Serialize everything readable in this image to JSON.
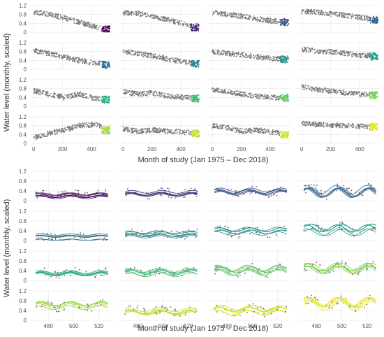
{
  "chart_data": [
    {
      "type": "scatter",
      "panel_block": "top",
      "ylabel": "Water level (monthly, scaled)",
      "xlabel": "Month of study (Jan 1975 – Dec 2018)",
      "xlim": [
        -30,
        540
      ],
      "ylim": [
        0,
        1.2
      ],
      "x_ticks": [
        "0",
        "200",
        "400"
      ],
      "x_tick_values": [
        0,
        200,
        400
      ],
      "y_ticks": [
        "0",
        "0.4",
        "0.8",
        "1.2"
      ],
      "y_tick_values": [
        0,
        0.4,
        0.8,
        1.2
      ],
      "grid": true,
      "layout": "4x4 facets",
      "base_color": "#777777",
      "highlight_x_range": [
        470,
        527
      ],
      "facet_colors": [
        "#46085c",
        "#472d7b",
        "#3b528b",
        "#33628d",
        "#2c728e",
        "#25838e",
        "#21918c",
        "#1e9f88",
        "#28ae80",
        "#3fbc73",
        "#5dc863",
        "#7ad151",
        "#9bd93c",
        "#bddf26",
        "#d2e21b",
        "#e5e419"
      ],
      "facet_levels": [
        [
          0.9,
          0.82,
          0.65,
          0.45,
          0.25,
          0.12
        ],
        [
          0.88,
          0.85,
          0.7,
          0.55,
          0.38,
          0.22
        ],
        [
          0.9,
          0.8,
          0.72,
          0.6,
          0.5,
          0.45
        ],
        [
          0.95,
          0.9,
          0.82,
          0.75,
          0.65,
          0.55
        ],
        [
          0.85,
          0.7,
          0.55,
          0.4,
          0.28,
          0.2
        ],
        [
          0.82,
          0.7,
          0.6,
          0.45,
          0.32,
          0.25
        ],
        [
          0.8,
          0.72,
          0.65,
          0.55,
          0.48,
          0.45
        ],
        [
          0.9,
          0.82,
          0.78,
          0.7,
          0.62,
          0.58
        ],
        [
          0.7,
          0.55,
          0.4,
          0.55,
          0.35,
          0.3
        ],
        [
          0.65,
          0.55,
          0.6,
          0.45,
          0.4,
          0.35
        ],
        [
          0.75,
          0.65,
          0.55,
          0.45,
          0.4,
          0.38
        ],
        [
          0.88,
          0.75,
          0.68,
          0.6,
          0.55,
          0.5
        ],
        [
          0.25,
          0.45,
          0.6,
          0.8,
          0.85,
          0.6
        ],
        [
          0.65,
          0.55,
          0.6,
          0.55,
          0.5,
          0.45
        ],
        [
          0.8,
          0.7,
          0.55,
          0.6,
          0.5,
          0.4
        ],
        [
          0.9,
          0.85,
          0.82,
          0.8,
          0.78,
          0.75
        ]
      ]
    },
    {
      "type": "line",
      "panel_block": "bottom",
      "ylabel": "Water level (monthly, scaled)",
      "xlabel": "Month of study (Jan 1975 – Dec 2018)",
      "xlim": [
        465,
        530
      ],
      "ylim": [
        0,
        1.2
      ],
      "x_ticks": [
        "480",
        "500",
        "520"
      ],
      "x_tick_values": [
        480,
        500,
        520
      ],
      "y_ticks": [
        "0",
        "0.4",
        "0.8",
        "1.2"
      ],
      "y_tick_values": [
        0,
        0.4,
        0.8,
        1.2
      ],
      "grid": true,
      "layout": "4x4 facets",
      "facet_colors": [
        "#46085c",
        "#472d7b",
        "#3b528b",
        "#33628d",
        "#2c728e",
        "#25838e",
        "#21918c",
        "#1e9f88",
        "#28ae80",
        "#3fbc73",
        "#5dc863",
        "#7ad151",
        "#9bd93c",
        "#bddf26",
        "#d2e21b",
        "#e5e419"
      ],
      "facet_levels": [
        0.25,
        0.3,
        0.35,
        0.4,
        0.15,
        0.25,
        0.35,
        0.45,
        0.3,
        0.35,
        0.4,
        0.5,
        0.6,
        0.4,
        0.4,
        0.7
      ],
      "facet_amplitude": [
        0.05,
        0.06,
        0.08,
        0.18,
        0.03,
        0.05,
        0.08,
        0.14,
        0.06,
        0.08,
        0.12,
        0.15,
        0.08,
        0.08,
        0.1,
        0.18
      ]
    }
  ]
}
